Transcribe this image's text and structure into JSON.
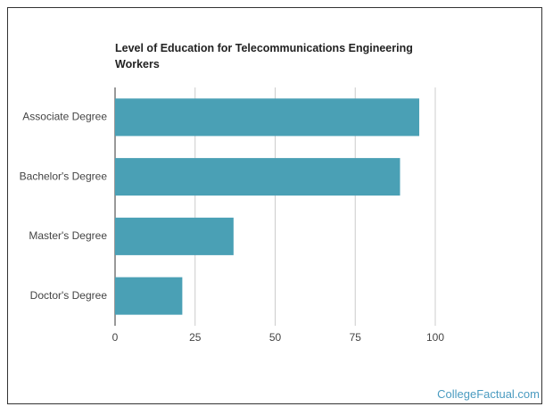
{
  "chart_data": {
    "type": "bar",
    "orientation": "horizontal",
    "title": "Level of Education for Telecommunications Engineering Workers",
    "source": "CollegeFactual.com",
    "categories": [
      "Associate Degree",
      "Bachelor's Degree",
      "Master's Degree",
      "Doctor's Degree"
    ],
    "values": [
      95,
      89,
      37,
      21
    ],
    "color": "#4aa0b5",
    "xlim": [
      0,
      100
    ],
    "xticks": [
      0,
      25,
      50,
      75,
      100
    ],
    "grid": true
  }
}
